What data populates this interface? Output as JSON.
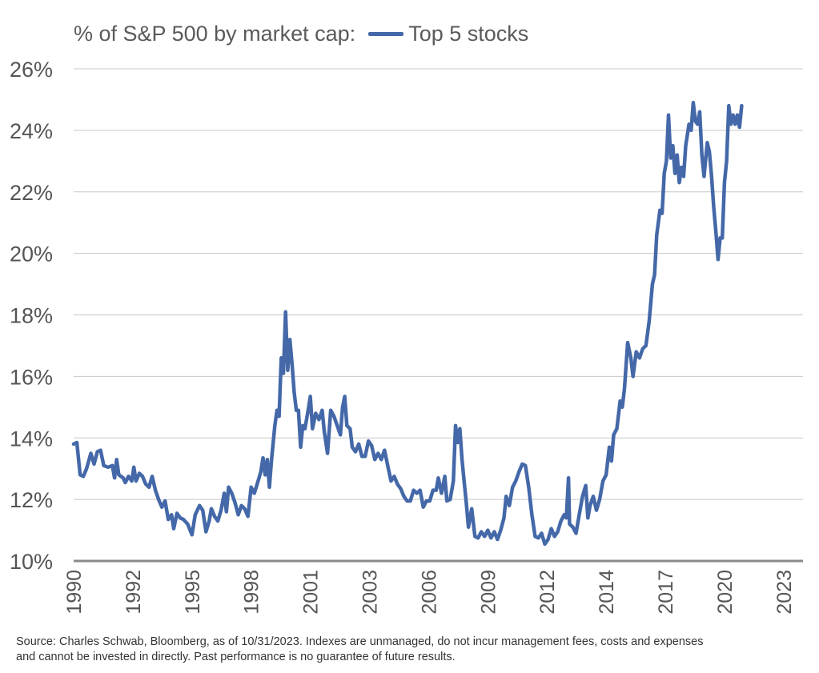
{
  "chart_data": {
    "type": "line",
    "title": "% of S&P 500 by market cap:",
    "xlabel": "",
    "ylabel": "",
    "ylim": [
      10,
      26
    ],
    "yticks": [
      "10%",
      "12%",
      "14%",
      "16%",
      "18%",
      "20%",
      "22%",
      "24%",
      "26%"
    ],
    "ytick_values": [
      10,
      12,
      14,
      16,
      18,
      20,
      22,
      24,
      26
    ],
    "xlim": [
      1990.0,
      2023.9
    ],
    "xticks": [
      "1990",
      "1992",
      "1995",
      "1998",
      "2001",
      "2003",
      "2006",
      "2009",
      "2012",
      "2014",
      "2017",
      "2020",
      "2023"
    ],
    "xtick_values": [
      1990.0,
      1992.75,
      1995.5,
      1998.25,
      2001.0,
      2003.75,
      2006.5,
      2009.25,
      2012.0,
      2014.75,
      2017.5,
      2020.25,
      2023.0
    ],
    "grid": true,
    "legend": "top",
    "series": [
      {
        "name": "Top 5 stocks",
        "color": "#4468a8",
        "points": [
          [
            1990.0,
            13.8
          ],
          [
            1990.15,
            13.85
          ],
          [
            1990.3,
            12.8
          ],
          [
            1990.45,
            12.75
          ],
          [
            1990.6,
            13.0
          ],
          [
            1990.8,
            13.5
          ],
          [
            1990.95,
            13.15
          ],
          [
            1991.1,
            13.55
          ],
          [
            1991.25,
            13.6
          ],
          [
            1991.4,
            13.1
          ],
          [
            1991.6,
            13.05
          ],
          [
            1991.8,
            13.1
          ],
          [
            1991.9,
            12.7
          ],
          [
            1992.0,
            13.3
          ],
          [
            1992.1,
            12.8
          ],
          [
            1992.3,
            12.7
          ],
          [
            1992.4,
            12.55
          ],
          [
            1992.55,
            12.75
          ],
          [
            1992.7,
            12.6
          ],
          [
            1992.8,
            13.05
          ],
          [
            1992.9,
            12.6
          ],
          [
            1993.05,
            12.85
          ],
          [
            1993.2,
            12.75
          ],
          [
            1993.35,
            12.5
          ],
          [
            1993.5,
            12.4
          ],
          [
            1993.65,
            12.75
          ],
          [
            1993.8,
            12.3
          ],
          [
            1993.95,
            12.0
          ],
          [
            1994.1,
            11.75
          ],
          [
            1994.25,
            11.95
          ],
          [
            1994.4,
            11.35
          ],
          [
            1994.55,
            11.5
          ],
          [
            1994.65,
            11.05
          ],
          [
            1994.8,
            11.55
          ],
          [
            1994.95,
            11.4
          ],
          [
            1995.1,
            11.35
          ],
          [
            1995.3,
            11.2
          ],
          [
            1995.5,
            10.85
          ],
          [
            1995.65,
            11.5
          ],
          [
            1995.85,
            11.8
          ],
          [
            1996.0,
            11.65
          ],
          [
            1996.15,
            10.95
          ],
          [
            1996.3,
            11.3
          ],
          [
            1996.4,
            11.7
          ],
          [
            1996.55,
            11.45
          ],
          [
            1996.7,
            11.3
          ],
          [
            1996.85,
            11.65
          ],
          [
            1997.0,
            12.2
          ],
          [
            1997.1,
            11.6
          ],
          [
            1997.2,
            12.4
          ],
          [
            1997.35,
            12.2
          ],
          [
            1997.5,
            11.9
          ],
          [
            1997.65,
            11.5
          ],
          [
            1997.8,
            11.8
          ],
          [
            1997.95,
            11.7
          ],
          [
            1998.1,
            11.45
          ],
          [
            1998.25,
            12.4
          ],
          [
            1998.4,
            12.2
          ],
          [
            1998.55,
            12.55
          ],
          [
            1998.7,
            12.9
          ],
          [
            1998.8,
            13.35
          ],
          [
            1998.9,
            12.8
          ],
          [
            1999.0,
            13.3
          ],
          [
            1999.1,
            12.4
          ],
          [
            1999.2,
            13.3
          ],
          [
            1999.35,
            14.4
          ],
          [
            1999.45,
            14.9
          ],
          [
            1999.55,
            14.7
          ],
          [
            1999.65,
            16.6
          ],
          [
            1999.75,
            16.1
          ],
          [
            1999.85,
            18.1
          ],
          [
            1999.95,
            16.2
          ],
          [
            2000.05,
            17.2
          ],
          [
            2000.15,
            16.4
          ],
          [
            2000.25,
            15.5
          ],
          [
            2000.35,
            14.9
          ],
          [
            2000.45,
            14.9
          ],
          [
            2000.55,
            13.7
          ],
          [
            2000.65,
            14.4
          ],
          [
            2000.75,
            14.3
          ],
          [
            2000.9,
            14.9
          ],
          [
            2001.0,
            15.35
          ],
          [
            2001.1,
            14.3
          ],
          [
            2001.25,
            14.8
          ],
          [
            2001.4,
            14.6
          ],
          [
            2001.55,
            14.9
          ],
          [
            2001.65,
            14.2
          ],
          [
            2001.8,
            13.5
          ],
          [
            2001.95,
            14.9
          ],
          [
            2002.1,
            14.7
          ],
          [
            2002.25,
            14.4
          ],
          [
            2002.4,
            14.1
          ],
          [
            2002.5,
            15.0
          ],
          [
            2002.6,
            15.35
          ],
          [
            2002.7,
            14.4
          ],
          [
            2002.85,
            14.3
          ],
          [
            2002.95,
            13.7
          ],
          [
            2003.1,
            13.55
          ],
          [
            2003.25,
            13.8
          ],
          [
            2003.4,
            13.4
          ],
          [
            2003.55,
            13.4
          ],
          [
            2003.7,
            13.9
          ],
          [
            2003.85,
            13.75
          ],
          [
            2004.0,
            13.3
          ],
          [
            2004.15,
            13.5
          ],
          [
            2004.3,
            13.3
          ],
          [
            2004.45,
            13.6
          ],
          [
            2004.6,
            13.1
          ],
          [
            2004.75,
            12.6
          ],
          [
            2004.9,
            12.75
          ],
          [
            2005.05,
            12.5
          ],
          [
            2005.2,
            12.35
          ],
          [
            2005.35,
            12.1
          ],
          [
            2005.5,
            11.95
          ],
          [
            2005.65,
            11.95
          ],
          [
            2005.8,
            12.3
          ],
          [
            2005.95,
            12.2
          ],
          [
            2006.1,
            12.3
          ],
          [
            2006.25,
            11.75
          ],
          [
            2006.4,
            11.95
          ],
          [
            2006.55,
            11.95
          ],
          [
            2006.7,
            12.3
          ],
          [
            2006.85,
            12.3
          ],
          [
            2006.95,
            12.7
          ],
          [
            2007.1,
            12.2
          ],
          [
            2007.25,
            12.75
          ],
          [
            2007.35,
            11.95
          ],
          [
            2007.5,
            12.0
          ],
          [
            2007.65,
            12.6
          ],
          [
            2007.75,
            14.4
          ],
          [
            2007.85,
            13.85
          ],
          [
            2007.95,
            14.3
          ],
          [
            2008.05,
            13.3
          ],
          [
            2008.15,
            12.6
          ],
          [
            2008.25,
            11.9
          ],
          [
            2008.35,
            11.1
          ],
          [
            2008.5,
            11.7
          ],
          [
            2008.65,
            10.8
          ],
          [
            2008.8,
            10.75
          ],
          [
            2008.95,
            10.95
          ],
          [
            2009.1,
            10.8
          ],
          [
            2009.25,
            11.0
          ],
          [
            2009.4,
            10.75
          ],
          [
            2009.55,
            10.95
          ],
          [
            2009.7,
            10.7
          ],
          [
            2009.85,
            11.0
          ],
          [
            2010.0,
            11.4
          ],
          [
            2010.1,
            12.1
          ],
          [
            2010.25,
            11.8
          ],
          [
            2010.4,
            12.4
          ],
          [
            2010.55,
            12.6
          ],
          [
            2010.7,
            12.9
          ],
          [
            2010.85,
            13.15
          ],
          [
            2011.0,
            13.1
          ],
          [
            2011.15,
            12.4
          ],
          [
            2011.3,
            11.5
          ],
          [
            2011.45,
            10.8
          ],
          [
            2011.6,
            10.75
          ],
          [
            2011.75,
            10.9
          ],
          [
            2011.9,
            10.55
          ],
          [
            2012.05,
            10.7
          ],
          [
            2012.2,
            11.05
          ],
          [
            2012.35,
            10.8
          ],
          [
            2012.5,
            10.95
          ],
          [
            2012.65,
            11.3
          ],
          [
            2012.8,
            11.5
          ],
          [
            2012.9,
            11.4
          ],
          [
            2013.0,
            12.7
          ],
          [
            2013.05,
            11.2
          ],
          [
            2013.2,
            11.1
          ],
          [
            2013.35,
            10.9
          ],
          [
            2013.5,
            11.5
          ],
          [
            2013.65,
            12.1
          ],
          [
            2013.8,
            12.45
          ],
          [
            2013.9,
            11.4
          ],
          [
            2014.0,
            11.8
          ],
          [
            2014.15,
            12.1
          ],
          [
            2014.3,
            11.65
          ],
          [
            2014.45,
            12.0
          ],
          [
            2014.6,
            12.6
          ],
          [
            2014.75,
            12.8
          ],
          [
            2014.9,
            13.7
          ],
          [
            2015.0,
            13.25
          ],
          [
            2015.1,
            14.1
          ],
          [
            2015.25,
            14.3
          ],
          [
            2015.4,
            15.2
          ],
          [
            2015.5,
            15.0
          ],
          [
            2015.6,
            15.6
          ],
          [
            2015.75,
            17.1
          ],
          [
            2015.9,
            16.6
          ],
          [
            2016.0,
            16.0
          ],
          [
            2016.15,
            16.8
          ],
          [
            2016.3,
            16.6
          ],
          [
            2016.45,
            16.9
          ],
          [
            2016.6,
            17.0
          ],
          [
            2016.75,
            17.8
          ],
          [
            2016.9,
            19.0
          ],
          [
            2017.0,
            19.3
          ],
          [
            2017.1,
            20.6
          ],
          [
            2017.25,
            21.4
          ],
          [
            2017.35,
            21.3
          ],
          [
            2017.45,
            22.6
          ],
          [
            2017.55,
            23.0
          ],
          [
            2017.65,
            24.5
          ],
          [
            2017.75,
            23.1
          ],
          [
            2017.85,
            23.5
          ],
          [
            2017.95,
            22.6
          ],
          [
            2018.05,
            23.2
          ],
          [
            2018.15,
            22.3
          ],
          [
            2018.25,
            22.8
          ],
          [
            2018.35,
            22.5
          ],
          [
            2018.45,
            23.5
          ],
          [
            2018.6,
            24.2
          ],
          [
            2018.7,
            24.0
          ],
          [
            2018.8,
            24.9
          ],
          [
            2018.9,
            24.3
          ],
          [
            2019.0,
            24.2
          ],
          [
            2019.1,
            24.6
          ],
          [
            2019.2,
            23.2
          ],
          [
            2019.3,
            22.5
          ],
          [
            2019.45,
            23.6
          ],
          [
            2019.55,
            23.3
          ],
          [
            2019.65,
            22.5
          ],
          [
            2019.75,
            21.5
          ],
          [
            2019.85,
            20.7
          ],
          [
            2019.95,
            19.8
          ],
          [
            2020.05,
            20.5
          ],
          [
            2020.15,
            20.5
          ],
          [
            2020.25,
            22.3
          ],
          [
            2020.35,
            23.0
          ],
          [
            2020.45,
            24.8
          ],
          [
            2020.55,
            24.2
          ],
          [
            2020.65,
            24.5
          ],
          [
            2020.75,
            24.2
          ],
          [
            2020.85,
            24.5
          ],
          [
            2020.95,
            24.1
          ],
          [
            2021.05,
            24.8
          ]
        ]
      }
    ]
  },
  "footer": {
    "source_line1": "Source: Charles Schwab, Bloomberg, as of 10/31/2023. Indexes are unmanaged, do not incur management fees, costs and expenses",
    "source_line2": "and cannot be invested in directly. Past performance is no guarantee of future results."
  }
}
